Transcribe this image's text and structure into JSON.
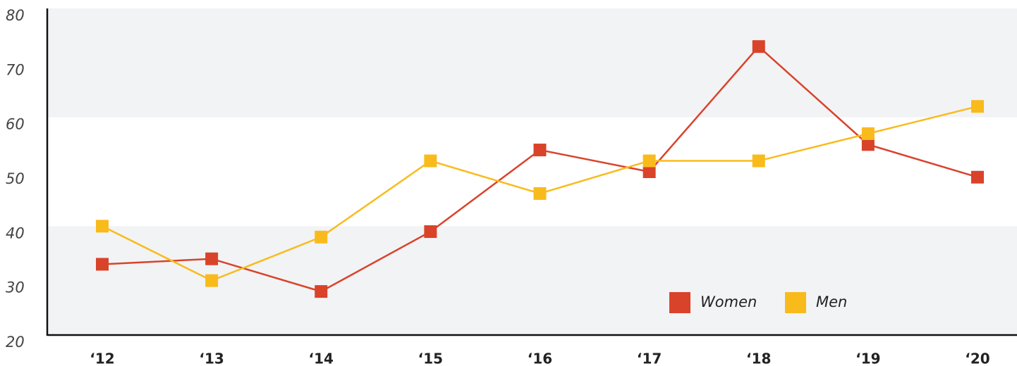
{
  "chart_data": {
    "type": "line",
    "categories": [
      "‘12",
      "‘13",
      "‘14",
      "‘15",
      "‘16",
      "‘17",
      "‘18",
      "‘19",
      "‘20"
    ],
    "series": [
      {
        "name": "Women",
        "color": "#d9432a",
        "values": [
          33,
          34,
          28,
          39,
          54,
          50,
          73,
          55,
          49
        ]
      },
      {
        "name": "Men",
        "color": "#f9bb1c",
        "values": [
          40,
          30,
          38,
          52,
          46,
          52,
          52,
          57,
          62
        ]
      }
    ],
    "ylim": [
      20,
      80
    ],
    "yticks": [
      20,
      30,
      40,
      50,
      60,
      70,
      80
    ],
    "grid": "bands",
    "legend": "lower right"
  }
}
